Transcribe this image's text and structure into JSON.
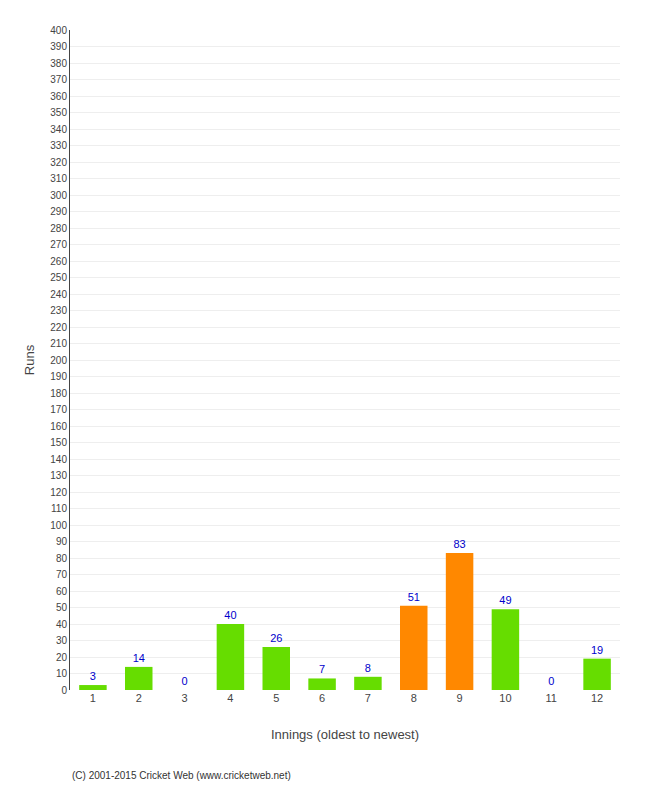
{
  "chart_data": {
    "type": "bar",
    "xlabel": "Innings (oldest to newest)",
    "ylabel": "Runs",
    "categories": [
      1,
      2,
      3,
      4,
      5,
      6,
      7,
      8,
      9,
      10,
      11,
      12
    ],
    "values": [
      3,
      14,
      0,
      40,
      26,
      7,
      8,
      51,
      83,
      49,
      0,
      19
    ],
    "colors": [
      "#66dd00",
      "#66dd00",
      "#66dd00",
      "#66dd00",
      "#66dd00",
      "#66dd00",
      "#66dd00",
      "#ff8800",
      "#ff8800",
      "#66dd00",
      "#66dd00",
      "#66dd00"
    ],
    "ylim": [
      0,
      400
    ],
    "yticks": [
      0,
      10,
      20,
      30,
      40,
      50,
      60,
      70,
      80,
      90,
      100,
      110,
      120,
      130,
      140,
      150,
      160,
      170,
      180,
      190,
      200,
      210,
      220,
      230,
      240,
      250,
      260,
      270,
      280,
      290,
      300,
      310,
      320,
      330,
      340,
      350,
      360,
      370,
      380,
      390,
      400
    ],
    "grid": true,
    "data_labels": true,
    "annotations": [
      "(C) 2001-2015 Cricket Web (www.cricketweb.net)"
    ]
  }
}
